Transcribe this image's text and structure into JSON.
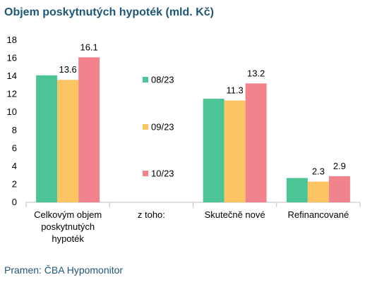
{
  "title": "Objem poskytnutých hypoték (mld. Kč)",
  "source": "Pramen: ČBA Hypomonitor",
  "chart_data": {
    "type": "bar",
    "title": "Objem poskytnutých hypoték (mld. Kč)",
    "categories": [
      [
        "Celkovým objem",
        "poskytnutých",
        "hypoték"
      ],
      [
        "z toho:"
      ],
      [
        "Skutečně nové"
      ],
      [
        "Refinancované"
      ]
    ],
    "series": [
      {
        "name": "08/23",
        "color": "#4dc495",
        "values": [
          14.1,
          null,
          11.5,
          2.7
        ]
      },
      {
        "name": "09/23",
        "color": "#fcc463",
        "values": [
          13.6,
          null,
          11.3,
          2.3
        ]
      },
      {
        "name": "10/23",
        "color": "#f2838d",
        "values": [
          16.1,
          null,
          13.2,
          2.9
        ]
      }
    ],
    "data_labels": [
      [
        null,
        null,
        null,
        null
      ],
      [
        "13.6",
        null,
        "11.3",
        "2.3"
      ],
      [
        "16.1",
        null,
        "13.2",
        "2.9"
      ]
    ],
    "y_ticks": [
      "0",
      "2",
      "4",
      "6",
      "8",
      "10",
      "12",
      "14",
      "16",
      "18"
    ],
    "ylim": [
      0,
      18
    ],
    "legend_position": "center",
    "grid": false
  }
}
